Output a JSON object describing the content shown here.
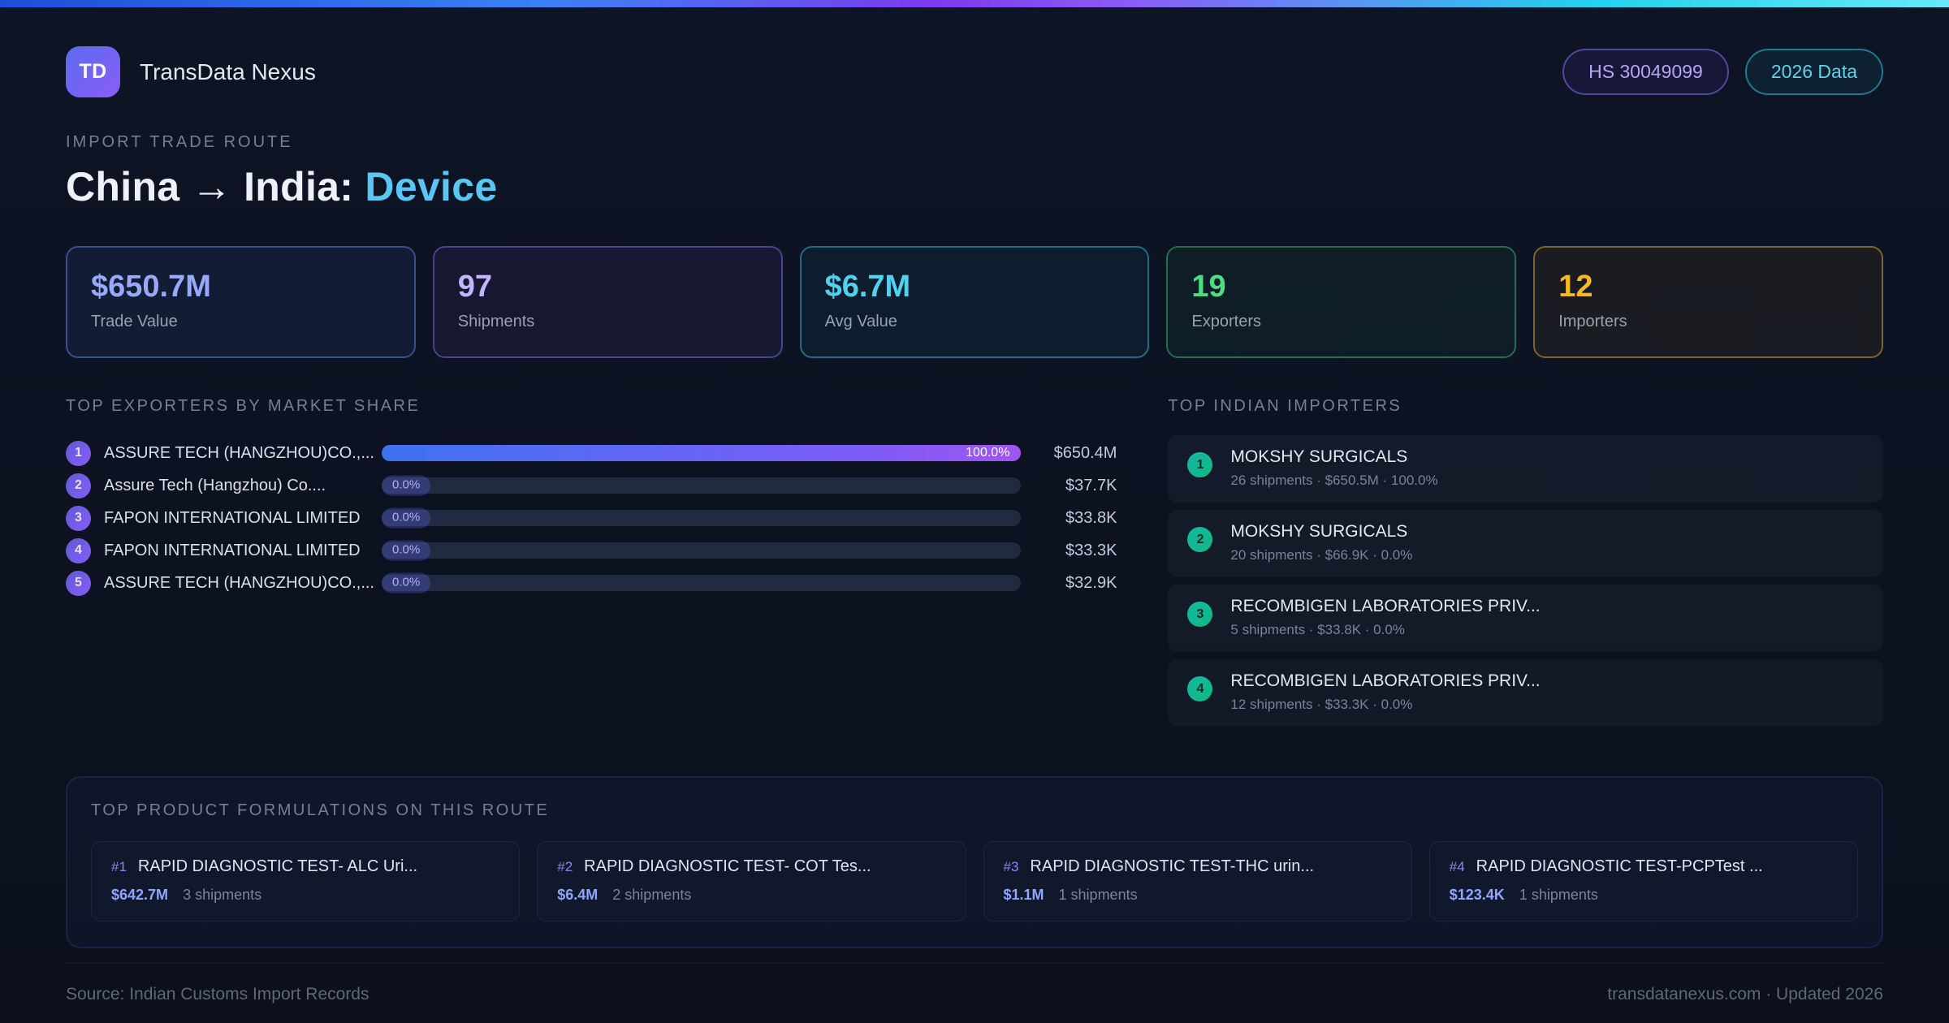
{
  "header": {
    "logo_text": "TD",
    "app_name": "TransData Nexus",
    "hs_badge": "HS 30049099",
    "year_badge": "2026 Data"
  },
  "hero": {
    "eyebrow": "IMPORT TRADE ROUTE",
    "title_main": "China → India: ",
    "title_accent": "Device"
  },
  "colors": {
    "accent_blue": "#96a9fb",
    "accent_purple": "#c3b4fd",
    "accent_cyan": "#4fd2ee",
    "accent_green": "#4ade80",
    "accent_amber": "#f5b923",
    "bar_gradient_start": "#3f72f0",
    "bar_gradient_end": "#a055f2"
  },
  "stats": [
    {
      "value": "$650.7M",
      "label": "Trade Value",
      "color": "#96a9fb"
    },
    {
      "value": "97",
      "label": "Shipments",
      "color": "#c3b4fd"
    },
    {
      "value": "$6.7M",
      "label": "Avg Value",
      "color": "#4fd2ee"
    },
    {
      "value": "19",
      "label": "Exporters",
      "color": "#4ade80"
    },
    {
      "value": "12",
      "label": "Importers",
      "color": "#f5b923"
    }
  ],
  "exporters": {
    "title": "TOP EXPORTERS BY MARKET SHARE",
    "rows": [
      {
        "rank": "1",
        "name": "ASSURE TECH (HANGZHOU)CO.,...",
        "share": "100.0%",
        "share_pct": 100,
        "value": "$650.4M"
      },
      {
        "rank": "2",
        "name": "Assure Tech (Hangzhou) Co....",
        "share": "0.0%",
        "share_pct": 0,
        "value": "$37.7K"
      },
      {
        "rank": "3",
        "name": "FAPON INTERNATIONAL LIMITED",
        "share": "0.0%",
        "share_pct": 0,
        "value": "$33.8K"
      },
      {
        "rank": "4",
        "name": "FAPON INTERNATIONAL LIMITED",
        "share": "0.0%",
        "share_pct": 0,
        "value": "$33.3K"
      },
      {
        "rank": "5",
        "name": "ASSURE TECH (HANGZHOU)CO.,...",
        "share": "0.0%",
        "share_pct": 0,
        "value": "$32.9K"
      }
    ]
  },
  "importers": {
    "title": "TOP INDIAN IMPORTERS",
    "rows": [
      {
        "rank": "1",
        "name": "MOKSHY SURGICALS",
        "meta": "26 shipments · $650.5M · 100.0%"
      },
      {
        "rank": "2",
        "name": "MOKSHY SURGICALS",
        "meta": "20 shipments · $66.9K · 0.0%"
      },
      {
        "rank": "3",
        "name": "RECOMBIGEN LABORATORIES PRIV...",
        "meta": "5 shipments · $33.8K · 0.0%"
      },
      {
        "rank": "4",
        "name": "RECOMBIGEN LABORATORIES PRIV...",
        "meta": "12 shipments · $33.3K · 0.0%"
      }
    ]
  },
  "products": {
    "title": "TOP PRODUCT FORMULATIONS ON THIS ROUTE",
    "items": [
      {
        "rank": "#1",
        "name": "RAPID DIAGNOSTIC TEST- ALC Uri...",
        "value": "$642.7M",
        "shipments": "3 shipments"
      },
      {
        "rank": "#2",
        "name": "RAPID DIAGNOSTIC TEST- COT Tes...",
        "value": "$6.4M",
        "shipments": "2 shipments"
      },
      {
        "rank": "#3",
        "name": "RAPID DIAGNOSTIC TEST-THC urin...",
        "value": "$1.1M",
        "shipments": "1 shipments"
      },
      {
        "rank": "#4",
        "name": "RAPID DIAGNOSTIC TEST-PCPTest ...",
        "value": "$123.4K",
        "shipments": "1 shipments"
      }
    ]
  },
  "footer": {
    "source": "Source: Indian Customs Import Records",
    "site": "transdatanexus.com · Updated 2026"
  }
}
